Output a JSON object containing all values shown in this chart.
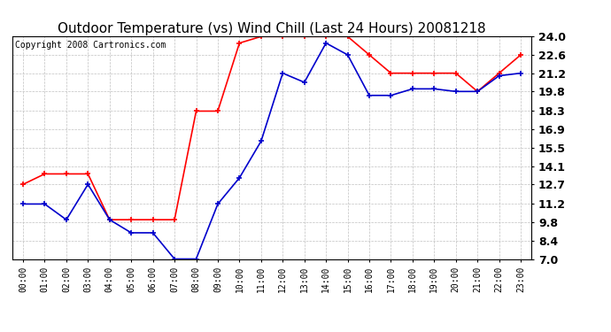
{
  "title": "Outdoor Temperature (vs) Wind Chill (Last 24 Hours) 20081218",
  "copyright_text": "Copyright 2008 Cartronics.com",
  "x_labels": [
    "00:00",
    "01:00",
    "02:00",
    "03:00",
    "04:00",
    "05:00",
    "06:00",
    "07:00",
    "08:00",
    "09:00",
    "10:00",
    "11:00",
    "12:00",
    "13:00",
    "14:00",
    "15:00",
    "16:00",
    "17:00",
    "18:00",
    "19:00",
    "20:00",
    "21:00",
    "22:00",
    "23:00"
  ],
  "red_data": [
    12.7,
    13.5,
    13.5,
    13.5,
    10.0,
    10.0,
    10.0,
    10.0,
    18.3,
    18.3,
    23.5,
    24.0,
    24.0,
    24.0,
    24.0,
    24.0,
    22.6,
    21.2,
    21.2,
    21.2,
    21.2,
    19.8,
    21.2,
    22.6
  ],
  "blue_data": [
    11.2,
    11.2,
    10.0,
    12.7,
    10.0,
    9.0,
    9.0,
    7.0,
    7.0,
    11.2,
    13.2,
    16.0,
    21.2,
    20.5,
    23.5,
    22.6,
    19.5,
    19.5,
    20.0,
    20.0,
    19.8,
    19.8,
    21.0,
    21.2
  ],
  "ylim": [
    7.0,
    24.0
  ],
  "yticks": [
    7.0,
    8.4,
    9.8,
    11.2,
    12.7,
    14.1,
    15.5,
    16.9,
    18.3,
    19.8,
    21.2,
    22.6,
    24.0
  ],
  "red_color": "#ff0000",
  "blue_color": "#0000cc",
  "background_color": "#ffffff",
  "grid_color": "#c0c0c0",
  "title_fontsize": 11,
  "copyright_fontsize": 7,
  "ytick_fontsize": 9,
  "xtick_fontsize": 7
}
